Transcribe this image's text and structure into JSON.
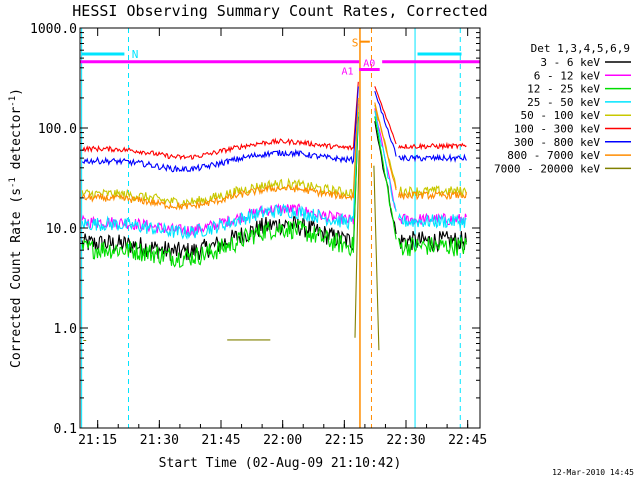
{
  "chart_data": {
    "type": "line",
    "title": "HESSI Observing Summary Count Rates, Corrected",
    "xlabel": "Start Time (02-Aug-09 21:10:42)",
    "ylabel_main": "Corrected Count Rate (s",
    "ylabel_sup1": "-1",
    "ylabel_mid": " detector",
    "ylabel_sup2": "-1",
    "ylabel_end": ")",
    "y_scale": "log",
    "ylim": [
      0.1,
      1000.0
    ],
    "xlim_minutes": [
      21.17,
      22.8
    ],
    "x_ticks": [
      "21:15",
      "21:30",
      "21:45",
      "22:00",
      "22:15",
      "22:30",
      "22:45"
    ],
    "x_tick_minutes": [
      1275,
      1290,
      1305,
      1320,
      1335,
      1350,
      1365
    ],
    "y_ticks": [
      "1000.0",
      "100.0",
      "10.0",
      "1.0",
      "0.1"
    ],
    "y_tick_values": [
      1000,
      100,
      10,
      1,
      0.1
    ],
    "legend_title": "Det 1,3,4,5,6,9",
    "legend_position": "right",
    "grid": false,
    "series": [
      {
        "name": "3 - 6 keV",
        "color": "#000000",
        "base": 7.0,
        "hump": 1.55,
        "noise": 0.1,
        "peak": 130
      },
      {
        "name": "6 - 12 keV",
        "color": "#ff00ff",
        "base": 11.5,
        "hump": 1.35,
        "noise": 0.06,
        "peak": 175
      },
      {
        "name": "12 - 25 keV",
        "color": "#00dd00",
        "base": 6.2,
        "hump": 1.6,
        "noise": 0.1,
        "peak": 145
      },
      {
        "name": "25 - 50 keV",
        "color": "#00e5ff",
        "base": 11.0,
        "hump": 1.35,
        "noise": 0.07,
        "peak": 165
      },
      {
        "name": "50 - 100 keV",
        "color": "#c8c800",
        "base": 22.0,
        "hump": 1.25,
        "noise": 0.05,
        "peak": 190
      },
      {
        "name": "100 - 300 keV",
        "color": "#ff0000",
        "base": 62.0,
        "hump": 1.18,
        "noise": 0.025,
        "peak": 290
      },
      {
        "name": "300 - 800 keV",
        "color": "#0000ff",
        "base": 47.0,
        "hump": 1.2,
        "noise": 0.03,
        "peak": 260
      },
      {
        "name": "800 - 7000 keV",
        "color": "#ff8c00",
        "base": 20.0,
        "hump": 1.25,
        "noise": 0.035,
        "peak": 200
      },
      {
        "name": "7000 - 20000 keV",
        "color": "#808000",
        "base": 0.75,
        "hump": 1.0,
        "noise": 0.0,
        "peak": 60
      }
    ],
    "annotations": {
      "night_label": "N",
      "saa_label": "S",
      "attenuator_labels": [
        "A0",
        "A1"
      ],
      "night_color": "#00e5ff",
      "attenuator_color": "#ff00ff",
      "saa_color": "#ff8c00"
    }
  },
  "footer": {
    "timestamp": "12-Mar-2010 14:45"
  }
}
